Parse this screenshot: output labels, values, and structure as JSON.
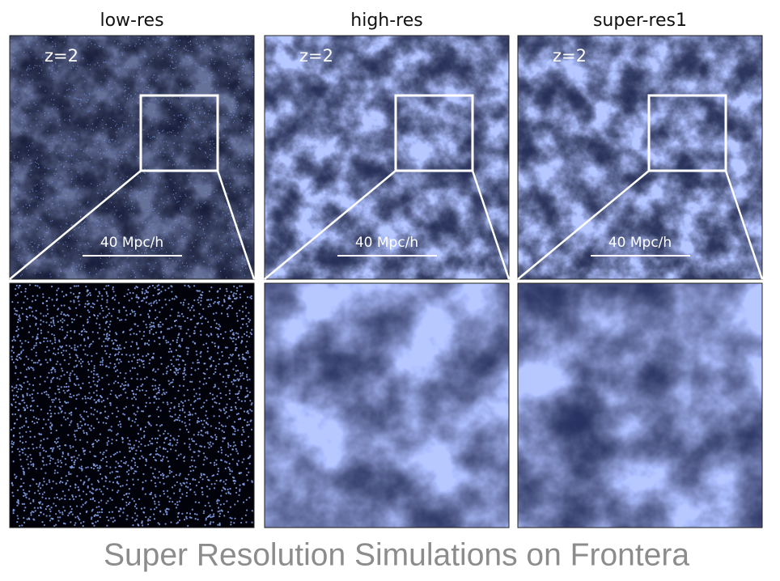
{
  "panels": [
    {
      "title": "low-res",
      "redshift": "z=2",
      "scale_bar": "40 Mpc/h"
    },
    {
      "title": "high-res",
      "redshift": "z=2",
      "scale_bar": "40 Mpc/h"
    },
    {
      "title": "super-res1",
      "redshift": "z=2",
      "scale_bar": "40 Mpc/h"
    }
  ],
  "caption": "Super Resolution Simulations on Frontera"
}
